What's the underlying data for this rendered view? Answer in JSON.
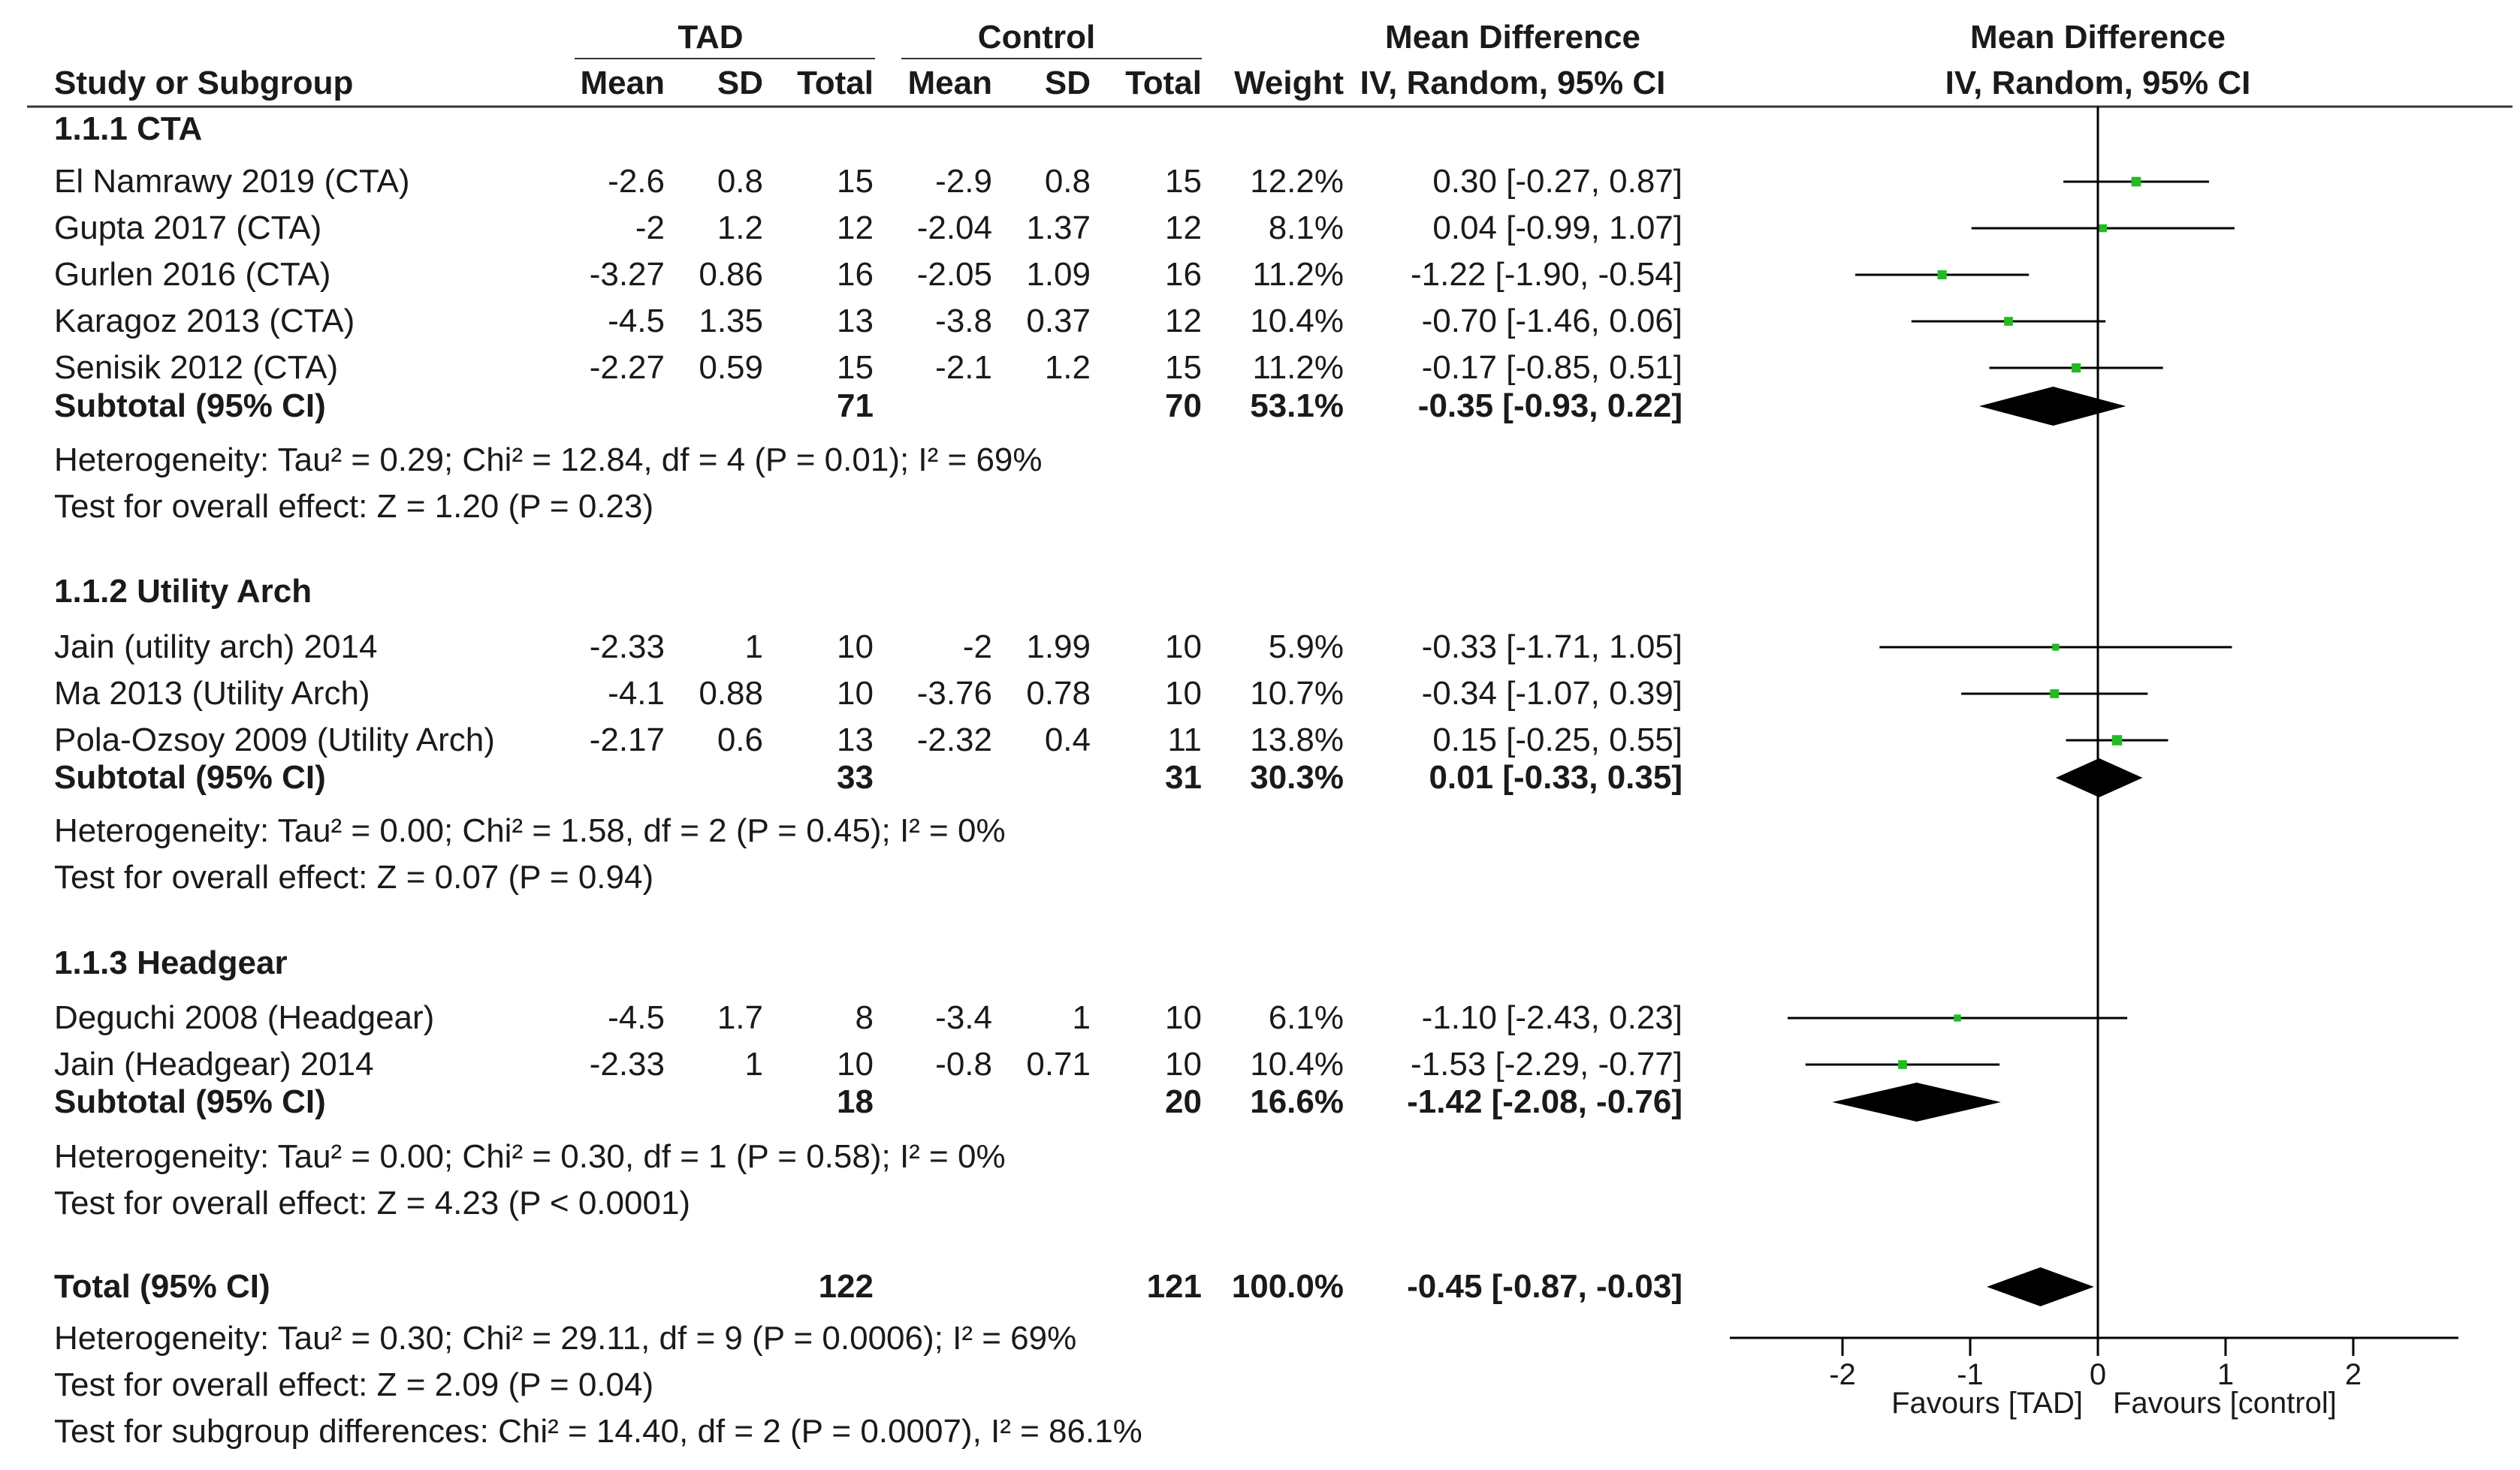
{
  "header": {
    "col_study": "Study or Subgroup",
    "group_tad": "TAD",
    "group_control": "Control",
    "col_mean": "Mean",
    "col_sd": "SD",
    "col_total": "Total",
    "col_weight": "Weight",
    "col_md": "Mean Difference",
    "col_md_method": "IV, Random, 95% CI"
  },
  "subgroups": [
    {
      "title": "1.1.1 CTA",
      "studies": [
        {
          "name": "El Namrawy 2019 (CTA)",
          "tad_mean": "-2.6",
          "tad_sd": "0.8",
          "tad_total": "15",
          "ctl_mean": "-2.9",
          "ctl_sd": "0.8",
          "ctl_total": "15",
          "weight": "12.2%",
          "ci_text": "0.30 [-0.27, 0.87]"
        },
        {
          "name": "Gupta 2017 (CTA)",
          "tad_mean": "-2",
          "tad_sd": "1.2",
          "tad_total": "12",
          "ctl_mean": "-2.04",
          "ctl_sd": "1.37",
          "ctl_total": "12",
          "weight": "8.1%",
          "ci_text": "0.04 [-0.99, 1.07]"
        },
        {
          "name": "Gurlen 2016 (CTA)",
          "tad_mean": "-3.27",
          "tad_sd": "0.86",
          "tad_total": "16",
          "ctl_mean": "-2.05",
          "ctl_sd": "1.09",
          "ctl_total": "16",
          "weight": "11.2%",
          "ci_text": "-1.22 [-1.90, -0.54]"
        },
        {
          "name": "Karagoz 2013 (CTA)",
          "tad_mean": "-4.5",
          "tad_sd": "1.35",
          "tad_total": "13",
          "ctl_mean": "-3.8",
          "ctl_sd": "0.37",
          "ctl_total": "12",
          "weight": "10.4%",
          "ci_text": "-0.70 [-1.46, 0.06]"
        },
        {
          "name": "Senisik 2012 (CTA)",
          "tad_mean": "-2.27",
          "tad_sd": "0.59",
          "tad_total": "15",
          "ctl_mean": "-2.1",
          "ctl_sd": "1.2",
          "ctl_total": "15",
          "weight": "11.2%",
          "ci_text": "-0.17 [-0.85, 0.51]"
        }
      ],
      "subtotal": {
        "label": "Subtotal (95% CI)",
        "tad_total": "71",
        "ctl_total": "70",
        "weight": "53.1%",
        "ci_text": "-0.35 [-0.93, 0.22]"
      },
      "heterogeneity": "Heterogeneity: Tau² = 0.29; Chi² = 12.84, df = 4 (P = 0.01); I² = 69%",
      "overall": "Test for overall effect: Z = 1.20 (P = 0.23)"
    },
    {
      "title": "1.1.2 Utility Arch",
      "studies": [
        {
          "name": "Jain (utility arch) 2014",
          "tad_mean": "-2.33",
          "tad_sd": "1",
          "tad_total": "10",
          "ctl_mean": "-2",
          "ctl_sd": "1.99",
          "ctl_total": "10",
          "weight": "5.9%",
          "ci_text": "-0.33 [-1.71, 1.05]"
        },
        {
          "name": "Ma 2013 (Utility Arch)",
          "tad_mean": "-4.1",
          "tad_sd": "0.88",
          "tad_total": "10",
          "ctl_mean": "-3.76",
          "ctl_sd": "0.78",
          "ctl_total": "10",
          "weight": "10.7%",
          "ci_text": "-0.34 [-1.07, 0.39]"
        },
        {
          "name": "Pola-Ozsoy 2009 (Utility Arch)",
          "tad_mean": "-2.17",
          "tad_sd": "0.6",
          "tad_total": "13",
          "ctl_mean": "-2.32",
          "ctl_sd": "0.4",
          "ctl_total": "11",
          "weight": "13.8%",
          "ci_text": "0.15 [-0.25, 0.55]"
        }
      ],
      "subtotal": {
        "label": "Subtotal (95% CI)",
        "tad_total": "33",
        "ctl_total": "31",
        "weight": "30.3%",
        "ci_text": "0.01 [-0.33, 0.35]"
      },
      "heterogeneity": "Heterogeneity: Tau² = 0.00; Chi² = 1.58, df = 2 (P = 0.45); I² = 0%",
      "overall": "Test for overall effect: Z = 0.07 (P = 0.94)"
    },
    {
      "title": "1.1.3 Headgear",
      "studies": [
        {
          "name": "Deguchi 2008 (Headgear)",
          "tad_mean": "-4.5",
          "tad_sd": "1.7",
          "tad_total": "8",
          "ctl_mean": "-3.4",
          "ctl_sd": "1",
          "ctl_total": "10",
          "weight": "6.1%",
          "ci_text": "-1.10 [-2.43, 0.23]"
        },
        {
          "name": "Jain (Headgear) 2014",
          "tad_mean": "-2.33",
          "tad_sd": "1",
          "tad_total": "10",
          "ctl_mean": "-0.8",
          "ctl_sd": "0.71",
          "ctl_total": "10",
          "weight": "10.4%",
          "ci_text": "-1.53 [-2.29, -0.77]"
        }
      ],
      "subtotal": {
        "label": "Subtotal (95% CI)",
        "tad_total": "18",
        "ctl_total": "20",
        "weight": "16.6%",
        "ci_text": "-1.42 [-2.08, -0.76]"
      },
      "heterogeneity": "Heterogeneity: Tau² = 0.00; Chi² = 0.30, df = 1 (P = 0.58); I² = 0%",
      "overall": "Test for overall effect: Z = 4.23 (P < 0.0001)"
    }
  ],
  "total": {
    "label": "Total (95% CI)",
    "tad_total": "122",
    "ctl_total": "121",
    "weight": "100.0%",
    "ci_text": "-0.45 [-0.87, -0.03]",
    "heterogeneity": "Heterogeneity: Tau² = 0.30; Chi² = 29.11, df = 9 (P = 0.0006); I² = 69%",
    "overall": "Test for overall effect: Z = 2.09 (P = 0.04)",
    "subgroup_diff": "Test for subgroup differences: Chi² = 14.40, df = 2 (P = 0.0007), I² = 86.1%"
  },
  "chart_data": {
    "type": "forest",
    "title": "Mean Difference",
    "subtitle": "IV, Random, 95% CI",
    "xlim": [
      -3,
      3
    ],
    "ticks": [
      -2,
      -1,
      0,
      1,
      2
    ],
    "favours_left": "Favours [TAD]",
    "favours_right": "Favours [control]",
    "colors": {
      "study_marker": "#22bb22",
      "diamond": "#000000",
      "line": "#000000"
    },
    "studies": [
      {
        "name": "El Namrawy 2019 (CTA)",
        "est": 0.3,
        "lo": -0.27,
        "hi": 0.87,
        "weight": 12.2
      },
      {
        "name": "Gupta 2017 (CTA)",
        "est": 0.04,
        "lo": -0.99,
        "hi": 1.07,
        "weight": 8.1
      },
      {
        "name": "Gurlen 2016 (CTA)",
        "est": -1.22,
        "lo": -1.9,
        "hi": -0.54,
        "weight": 11.2
      },
      {
        "name": "Karagoz 2013 (CTA)",
        "est": -0.7,
        "lo": -1.46,
        "hi": 0.06,
        "weight": 10.4
      },
      {
        "name": "Senisik 2012 (CTA)",
        "est": -0.17,
        "lo": -0.85,
        "hi": 0.51,
        "weight": 11.2
      },
      {
        "name": "Jain (utility arch) 2014",
        "est": -0.33,
        "lo": -1.71,
        "hi": 1.05,
        "weight": 5.9
      },
      {
        "name": "Ma 2013 (Utility Arch)",
        "est": -0.34,
        "lo": -1.07,
        "hi": 0.39,
        "weight": 10.7
      },
      {
        "name": "Pola-Ozsoy 2009 (Utility Arch)",
        "est": 0.15,
        "lo": -0.25,
        "hi": 0.55,
        "weight": 13.8
      },
      {
        "name": "Deguchi 2008 (Headgear)",
        "est": -1.1,
        "lo": -2.43,
        "hi": 0.23,
        "weight": 6.1
      },
      {
        "name": "Jain (Headgear) 2014",
        "est": -1.53,
        "lo": -2.29,
        "hi": -0.77,
        "weight": 10.4
      }
    ],
    "pooled": [
      {
        "name": "Subtotal CTA",
        "est": -0.35,
        "lo": -0.93,
        "hi": 0.22
      },
      {
        "name": "Subtotal Utility Arch",
        "est": 0.01,
        "lo": -0.33,
        "hi": 0.35
      },
      {
        "name": "Subtotal Headgear",
        "est": -1.42,
        "lo": -2.08,
        "hi": -0.76
      },
      {
        "name": "Total",
        "est": -0.45,
        "lo": -0.87,
        "hi": -0.03
      }
    ]
  }
}
